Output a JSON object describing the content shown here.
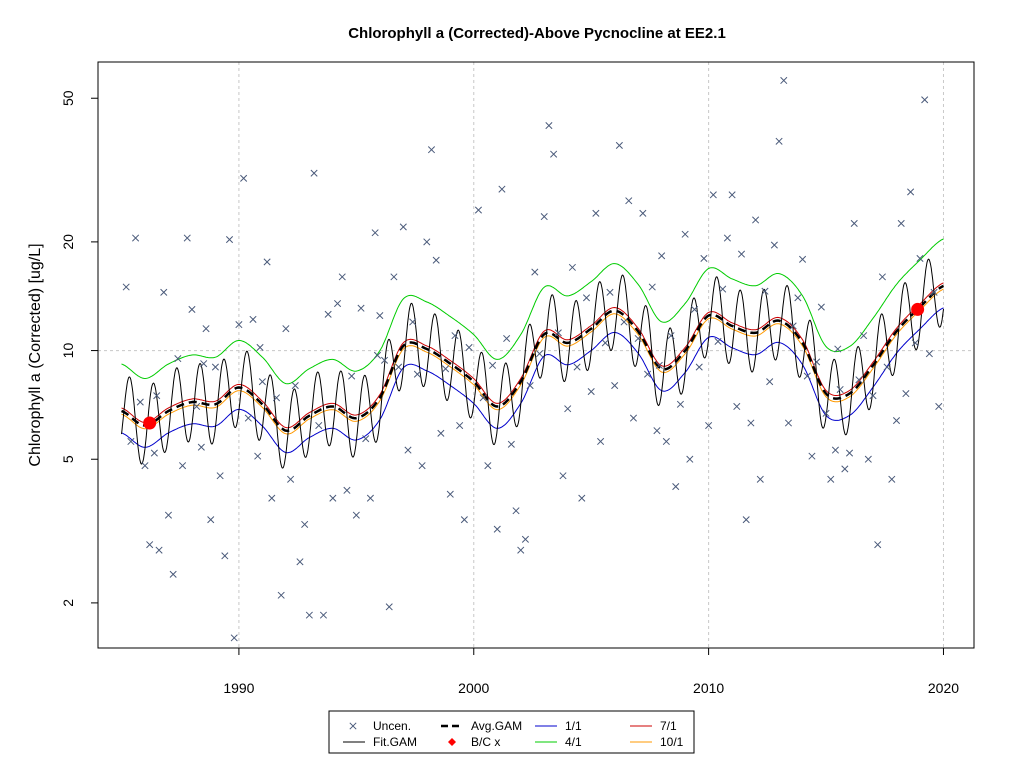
{
  "chart_data": {
    "type": "line",
    "title": "Chlorophyll a (Corrected)-Above Pycnocline at EE2.1",
    "xlabel": "",
    "ylabel": "Chlorophyll a (Corrected) [ug/L]",
    "y_scale": "log",
    "xlim": [
      1984.0,
      2021.3
    ],
    "ylim": [
      1.5,
      63
    ],
    "x_ticks": [
      1990,
      2000,
      2010,
      2020
    ],
    "y_ticks": [
      2,
      5,
      10,
      20,
      50
    ],
    "grid": {
      "x": [
        1990,
        2000,
        2010,
        2020
      ],
      "y": [
        10
      ]
    },
    "colors": {
      "uncen": "#4a5a7a",
      "fit_gam": "#000000",
      "avg_gam": "#000000",
      "bc": "#ff0000",
      "d1_1": "#0000cc",
      "d4_1": "#00cc00",
      "d7_1": "#cc0000",
      "d10_1": "#ff9900",
      "grid": "#c8c8c8"
    },
    "trend": {
      "x": [
        1985.0,
        1986.0,
        1987.0,
        1988.0,
        1989.0,
        1990.0,
        1991.0,
        1992.0,
        1993.0,
        1994.0,
        1995.0,
        1996.0,
        1997.0,
        1998.0,
        1999.0,
        2000.0,
        2001.0,
        2002.0,
        2003.0,
        2004.0,
        2005.0,
        2006.0,
        2007.0,
        2008.0,
        2009.0,
        2010.0,
        2011.0,
        2012.0,
        2013.0,
        2014.0,
        2015.0,
        2016.0,
        2017.0,
        2018.0,
        2019.0,
        2020.0
      ],
      "y": [
        6.8,
        6.2,
        6.8,
        7.2,
        7.1,
        7.9,
        7.1,
        6.0,
        6.6,
        7.0,
        6.5,
        7.4,
        10.3,
        10.1,
        9.2,
        8.2,
        7.0,
        8.2,
        11.1,
        10.5,
        11.5,
        12.9,
        11.3,
        8.9,
        10.0,
        12.5,
        11.7,
        11.2,
        12.1,
        10.5,
        7.6,
        7.6,
        9.1,
        11.3,
        13.2,
        15.1
      ]
    },
    "seasonal_amplitude": 0.25,
    "series": [
      {
        "name": "4/1",
        "ratio": 1.35
      },
      {
        "name": "7/1",
        "ratio": 1.02
      },
      {
        "name": "10/1",
        "ratio": 0.98
      },
      {
        "name": "1/1",
        "ratio": 0.87
      }
    ],
    "bc_points": [
      {
        "x": 1986.2,
        "y": 6.3
      },
      {
        "x": 2018.9,
        "y": 13.0
      }
    ],
    "uncensored_points": [
      [
        1985.2,
        15.0
      ],
      [
        1985.4,
        5.6
      ],
      [
        1985.6,
        20.5
      ],
      [
        1985.8,
        7.2
      ],
      [
        1986.0,
        4.8
      ],
      [
        1986.2,
        2.9
      ],
      [
        1986.4,
        5.2
      ],
      [
        1986.6,
        2.8
      ],
      [
        1986.8,
        14.5
      ],
      [
        1987.0,
        3.5
      ],
      [
        1987.2,
        2.4
      ],
      [
        1987.4,
        9.5
      ],
      [
        1987.6,
        4.8
      ],
      [
        1987.8,
        20.5
      ],
      [
        1988.0,
        13.0
      ],
      [
        1988.2,
        7.0
      ],
      [
        1988.4,
        5.4
      ],
      [
        1988.6,
        11.5
      ],
      [
        1988.8,
        3.4
      ],
      [
        1989.0,
        9.0
      ],
      [
        1989.2,
        4.5
      ],
      [
        1989.4,
        2.7
      ],
      [
        1989.6,
        20.3
      ],
      [
        1989.8,
        1.6
      ],
      [
        1990.0,
        11.8
      ],
      [
        1990.2,
        30.0
      ],
      [
        1990.4,
        6.5
      ],
      [
        1990.6,
        12.2
      ],
      [
        1990.8,
        5.1
      ],
      [
        1991.0,
        8.2
      ],
      [
        1991.2,
        17.6
      ],
      [
        1991.4,
        3.9
      ],
      [
        1991.6,
        7.4
      ],
      [
        1991.8,
        2.1
      ],
      [
        1992.0,
        11.5
      ],
      [
        1992.2,
        4.4
      ],
      [
        1992.4,
        8.0
      ],
      [
        1992.6,
        2.6
      ],
      [
        1992.8,
        3.3
      ],
      [
        1993.0,
        1.85
      ],
      [
        1993.2,
        31.0
      ],
      [
        1993.4,
        6.2
      ],
      [
        1993.6,
        1.85
      ],
      [
        1993.8,
        12.6
      ],
      [
        1994.0,
        3.9
      ],
      [
        1994.2,
        13.5
      ],
      [
        1994.4,
        16.0
      ],
      [
        1994.6,
        4.1
      ],
      [
        1994.8,
        8.5
      ],
      [
        1995.0,
        3.5
      ],
      [
        1995.2,
        13.1
      ],
      [
        1995.4,
        5.7
      ],
      [
        1995.6,
        3.9
      ],
      [
        1995.8,
        21.2
      ],
      [
        1996.0,
        12.5
      ],
      [
        1996.2,
        9.4
      ],
      [
        1996.4,
        1.95
      ],
      [
        1996.6,
        16.0
      ],
      [
        1996.8,
        9.0
      ],
      [
        1997.0,
        22.0
      ],
      [
        1997.2,
        5.3
      ],
      [
        1997.4,
        12.0
      ],
      [
        1997.6,
        8.6
      ],
      [
        1997.8,
        4.8
      ],
      [
        1998.0,
        20.0
      ],
      [
        1998.2,
        36.0
      ],
      [
        1998.4,
        17.8
      ],
      [
        1998.6,
        5.9
      ],
      [
        1998.8,
        8.9
      ],
      [
        1999.0,
        4.0
      ],
      [
        1999.2,
        11.0
      ],
      [
        1999.4,
        6.2
      ],
      [
        1999.6,
        3.4
      ],
      [
        1999.8,
        10.2
      ],
      [
        2000.2,
        24.5
      ],
      [
        2000.4,
        7.4
      ],
      [
        2000.6,
        4.8
      ],
      [
        2000.8,
        9.1
      ],
      [
        2001.0,
        3.2
      ],
      [
        2001.2,
        28.0
      ],
      [
        2001.4,
        10.8
      ],
      [
        2001.6,
        5.5
      ],
      [
        2001.8,
        3.6
      ],
      [
        2002.0,
        2.8
      ],
      [
        2002.2,
        3.0
      ],
      [
        2002.4,
        8.0
      ],
      [
        2002.6,
        16.5
      ],
      [
        2002.8,
        9.8
      ],
      [
        2003.0,
        23.5
      ],
      [
        2003.2,
        42.0
      ],
      [
        2003.4,
        35.0
      ],
      [
        2003.6,
        11.2
      ],
      [
        2003.8,
        4.5
      ],
      [
        2004.0,
        6.9
      ],
      [
        2004.2,
        17.0
      ],
      [
        2004.4,
        9.0
      ],
      [
        2004.6,
        3.9
      ],
      [
        2004.8,
        14.0
      ],
      [
        2005.0,
        7.7
      ],
      [
        2005.2,
        24.0
      ],
      [
        2005.4,
        5.6
      ],
      [
        2005.6,
        10.5
      ],
      [
        2005.8,
        14.5
      ],
      [
        2006.0,
        8.0
      ],
      [
        2006.2,
        37.0
      ],
      [
        2006.4,
        12.0
      ],
      [
        2006.6,
        26.0
      ],
      [
        2006.8,
        6.5
      ],
      [
        2007.0,
        10.8
      ],
      [
        2007.2,
        24.0
      ],
      [
        2007.4,
        8.6
      ],
      [
        2007.6,
        15.0
      ],
      [
        2007.8,
        6.0
      ],
      [
        2008.0,
        18.3
      ],
      [
        2008.2,
        5.6
      ],
      [
        2008.4,
        11.0
      ],
      [
        2008.6,
        4.2
      ],
      [
        2008.8,
        7.1
      ],
      [
        2009.0,
        21.0
      ],
      [
        2009.2,
        5.0
      ],
      [
        2009.4,
        13.0
      ],
      [
        2009.6,
        9.0
      ],
      [
        2009.8,
        18.0
      ],
      [
        2010.0,
        6.2
      ],
      [
        2010.2,
        27.0
      ],
      [
        2010.4,
        10.6
      ],
      [
        2010.6,
        14.8
      ],
      [
        2010.8,
        20.5
      ],
      [
        2011.0,
        27.0
      ],
      [
        2011.2,
        7.0
      ],
      [
        2011.4,
        18.5
      ],
      [
        2011.6,
        3.4
      ],
      [
        2011.8,
        6.3
      ],
      [
        2012.0,
        23.0
      ],
      [
        2012.2,
        4.4
      ],
      [
        2012.4,
        14.6
      ],
      [
        2012.6,
        8.2
      ],
      [
        2012.8,
        19.6
      ],
      [
        2013.0,
        38.0
      ],
      [
        2013.2,
        56.0
      ],
      [
        2013.4,
        6.3
      ],
      [
        2013.6,
        11.7
      ],
      [
        2013.8,
        14.0
      ],
      [
        2014.0,
        17.9
      ],
      [
        2014.2,
        8.5
      ],
      [
        2014.4,
        5.1
      ],
      [
        2014.6,
        9.3
      ],
      [
        2014.8,
        13.2
      ],
      [
        2015.0,
        6.7
      ],
      [
        2015.2,
        4.4
      ],
      [
        2015.4,
        5.3
      ],
      [
        2015.6,
        7.8
      ],
      [
        2015.8,
        4.7
      ],
      [
        2016.0,
        5.2
      ],
      [
        2016.2,
        22.5
      ],
      [
        2016.4,
        8.3
      ],
      [
        2016.6,
        11.0
      ],
      [
        2016.8,
        5.0
      ],
      [
        2017.0,
        7.5
      ],
      [
        2017.2,
        2.9
      ],
      [
        2017.4,
        16.0
      ],
      [
        2017.6,
        9.0
      ],
      [
        2017.8,
        4.4
      ],
      [
        2018.0,
        6.4
      ],
      [
        2018.2,
        22.5
      ],
      [
        2018.4,
        7.6
      ],
      [
        2018.6,
        27.5
      ],
      [
        2018.8,
        10.5
      ],
      [
        2019.0,
        18.0
      ],
      [
        2019.2,
        49.5
      ],
      [
        2019.4,
        9.8
      ],
      [
        2019.6,
        14.5
      ],
      [
        2019.8,
        7.0
      ],
      [
        1986.5,
        7.5
      ],
      [
        1988.5,
        9.2
      ],
      [
        1990.9,
        10.2
      ],
      [
        1995.9,
        9.7
      ],
      [
        2007.9,
        9.1
      ],
      [
        2015.5,
        10.1
      ]
    ],
    "legend": {
      "entries": [
        {
          "label": "Uncen.",
          "kind": "point",
          "color_key": "uncen"
        },
        {
          "label": "Avg.GAM",
          "kind": "dash",
          "color_key": "avg_gam"
        },
        {
          "label": "1/1",
          "kind": "line",
          "color_key": "d1_1"
        },
        {
          "label": "7/1",
          "kind": "line",
          "color_key": "d7_1"
        },
        {
          "label": "Fit.GAM",
          "kind": "line",
          "color_key": "fit_gam"
        },
        {
          "label": "B/C x",
          "kind": "diamond",
          "color_key": "bc"
        },
        {
          "label": "4/1",
          "kind": "line",
          "color_key": "d4_1"
        },
        {
          "label": "10/1",
          "kind": "line",
          "color_key": "d10_1"
        }
      ]
    }
  }
}
